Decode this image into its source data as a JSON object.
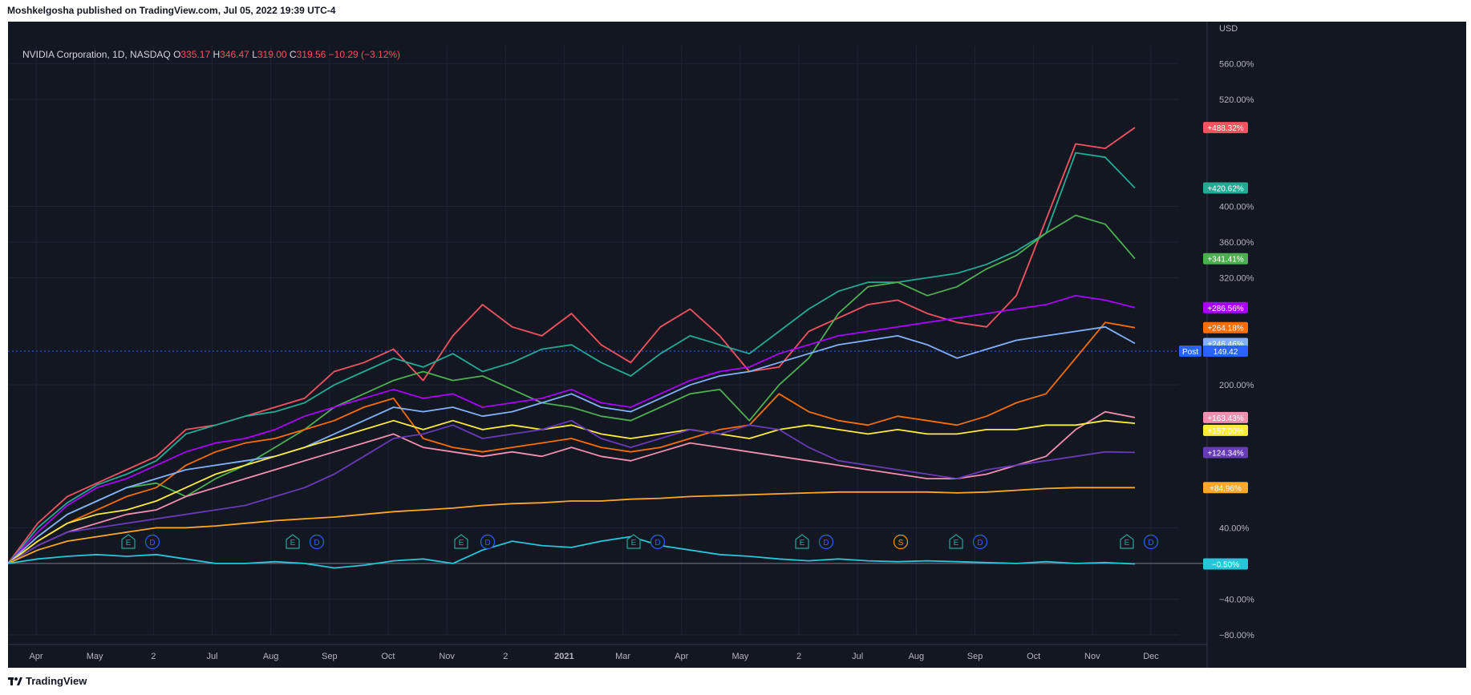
{
  "header": {
    "published": "Moshkelgosha published on TradingView.com, Jul 05, 2022 19:39 UTC-4"
  },
  "legend": {
    "symbol": "NVIDIA Corporation, 1D, NASDAQ",
    "o_label": "O",
    "o": "335.17",
    "h_label": "H",
    "h": "346.47",
    "l_label": "L",
    "l": "319.00",
    "c_label": "C",
    "c": "319.56",
    "change": "−10.29 (−3.12%)"
  },
  "footer": {
    "brand": "TradingView"
  },
  "colors": {
    "background": "#131722",
    "grid": "#1f2431",
    "text": "#b2b5be",
    "up": "#26a69a",
    "down": "#f7525f"
  },
  "chart_data": {
    "type": "line",
    "currency_label": "USD",
    "y_unit": "percent",
    "ylim": [
      -80,
      580
    ],
    "y_tick_labels": [
      "−80.00%",
      "−40.00%",
      "40.00%",
      "200.00%",
      "320.00%",
      "360.00%",
      "400.00%",
      "520.00%",
      "560.00%"
    ],
    "x_tick_labels": [
      "Apr",
      "May",
      "2",
      "Jul",
      "Aug",
      "Sep",
      "Oct",
      "Nov",
      "2",
      "2021",
      "Mar",
      "Apr",
      "May",
      "2",
      "Jul",
      "Aug",
      "Sep",
      "Oct",
      "Nov",
      "Dec"
    ],
    "grid": true,
    "series": [
      {
        "color": "#f7525f",
        "last": "+488.32%",
        "values": [
          0,
          45,
          75,
          90,
          105,
          120,
          150,
          155,
          165,
          175,
          185,
          215,
          225,
          240,
          205,
          255,
          290,
          265,
          255,
          280,
          245,
          225,
          265,
          285,
          255,
          215,
          220,
          260,
          275,
          290,
          295,
          280,
          270,
          265,
          300,
          385,
          470,
          465,
          488.32
        ]
      },
      {
        "color": "#22ab94",
        "last": "+420.62%",
        "values": [
          0,
          40,
          68,
          88,
          100,
          115,
          145,
          155,
          165,
          170,
          180,
          200,
          215,
          230,
          220,
          235,
          215,
          225,
          240,
          245,
          225,
          210,
          235,
          255,
          245,
          235,
          260,
          285,
          305,
          315,
          315,
          320,
          325,
          335,
          350,
          370,
          460,
          455,
          420.62
        ]
      },
      {
        "color": "#4caf50",
        "last": "+341.41%",
        "values": [
          0,
          30,
          55,
          70,
          85,
          90,
          75,
          95,
          110,
          130,
          150,
          175,
          190,
          205,
          215,
          205,
          210,
          195,
          180,
          175,
          165,
          160,
          175,
          190,
          195,
          160,
          200,
          230,
          280,
          310,
          315,
          300,
          310,
          330,
          345,
          370,
          390,
          380,
          341.41
        ]
      },
      {
        "color": "#aa00ff",
        "last": "+286.56%",
        "values": [
          0,
          35,
          65,
          85,
          95,
          110,
          125,
          135,
          140,
          150,
          165,
          175,
          185,
          195,
          185,
          190,
          175,
          180,
          185,
          195,
          180,
          175,
          190,
          205,
          215,
          220,
          235,
          245,
          255,
          260,
          265,
          270,
          275,
          280,
          285,
          290,
          300,
          295,
          286.56
        ]
      },
      {
        "color": "#ff6d00",
        "last": "+264.18%",
        "values": [
          0,
          25,
          45,
          60,
          75,
          85,
          110,
          125,
          135,
          140,
          150,
          160,
          175,
          185,
          140,
          130,
          125,
          130,
          135,
          140,
          130,
          125,
          130,
          140,
          150,
          155,
          190,
          170,
          160,
          155,
          165,
          160,
          155,
          165,
          180,
          190,
          230,
          270,
          264.18
        ]
      },
      {
        "color": "#82b1ff",
        "last": "+246.46%",
        "values": [
          0,
          30,
          55,
          70,
          85,
          95,
          105,
          110,
          115,
          120,
          130,
          145,
          160,
          175,
          170,
          175,
          165,
          170,
          180,
          190,
          175,
          170,
          185,
          200,
          210,
          215,
          225,
          235,
          245,
          250,
          255,
          245,
          230,
          240,
          250,
          255,
          260,
          265,
          246.46
        ]
      },
      {
        "color": "#f48fb1",
        "last": "+163.43%",
        "values": [
          0,
          20,
          35,
          45,
          55,
          60,
          75,
          85,
          95,
          105,
          115,
          125,
          135,
          145,
          130,
          125,
          120,
          125,
          120,
          130,
          120,
          115,
          125,
          135,
          130,
          125,
          120,
          115,
          110,
          105,
          100,
          95,
          95,
          100,
          110,
          120,
          150,
          170,
          163.43
        ]
      },
      {
        "color": "#ffeb3b",
        "last": "+157.00%",
        "values": [
          0,
          25,
          45,
          55,
          60,
          70,
          85,
          100,
          110,
          120,
          130,
          140,
          150,
          160,
          150,
          160,
          150,
          155,
          150,
          155,
          145,
          140,
          145,
          150,
          145,
          140,
          150,
          155,
          150,
          145,
          150,
          145,
          145,
          150,
          150,
          155,
          155,
          160,
          157.0
        ]
      },
      {
        "color": "#673ab7",
        "last": "+124.34%",
        "values": [
          0,
          20,
          35,
          40,
          45,
          50,
          55,
          60,
          65,
          75,
          85,
          100,
          120,
          140,
          145,
          155,
          140,
          145,
          150,
          160,
          140,
          130,
          140,
          150,
          145,
          155,
          150,
          130,
          115,
          110,
          105,
          100,
          95,
          105,
          110,
          115,
          120,
          125,
          124.34
        ]
      },
      {
        "color": "#ffa726",
        "last": "+84.96%",
        "values": [
          0,
          15,
          25,
          30,
          35,
          40,
          40,
          42,
          45,
          48,
          50,
          52,
          55,
          58,
          60,
          62,
          65,
          67,
          68,
          70,
          70,
          72,
          73,
          75,
          76,
          77,
          78,
          79,
          80,
          80,
          80,
          80,
          79,
          80,
          82,
          84,
          85,
          85,
          84.96
        ]
      },
      {
        "color": "#26c6da",
        "last": "−0.50%",
        "values": [
          0,
          5,
          8,
          10,
          8,
          10,
          5,
          0,
          0,
          2,
          0,
          -5,
          -2,
          3,
          5,
          0,
          15,
          25,
          20,
          18,
          25,
          30,
          20,
          15,
          10,
          8,
          5,
          3,
          5,
          3,
          2,
          3,
          2,
          1,
          0,
          2,
          0,
          1,
          -0.5
        ]
      }
    ],
    "price_line": {
      "label": "Post",
      "value": "149.42"
    },
    "event_markers": [
      "E",
      "D",
      "E",
      "D",
      "E",
      "D",
      "E",
      "D",
      "E",
      "D",
      "S",
      "E",
      "D",
      "E",
      "D"
    ]
  }
}
